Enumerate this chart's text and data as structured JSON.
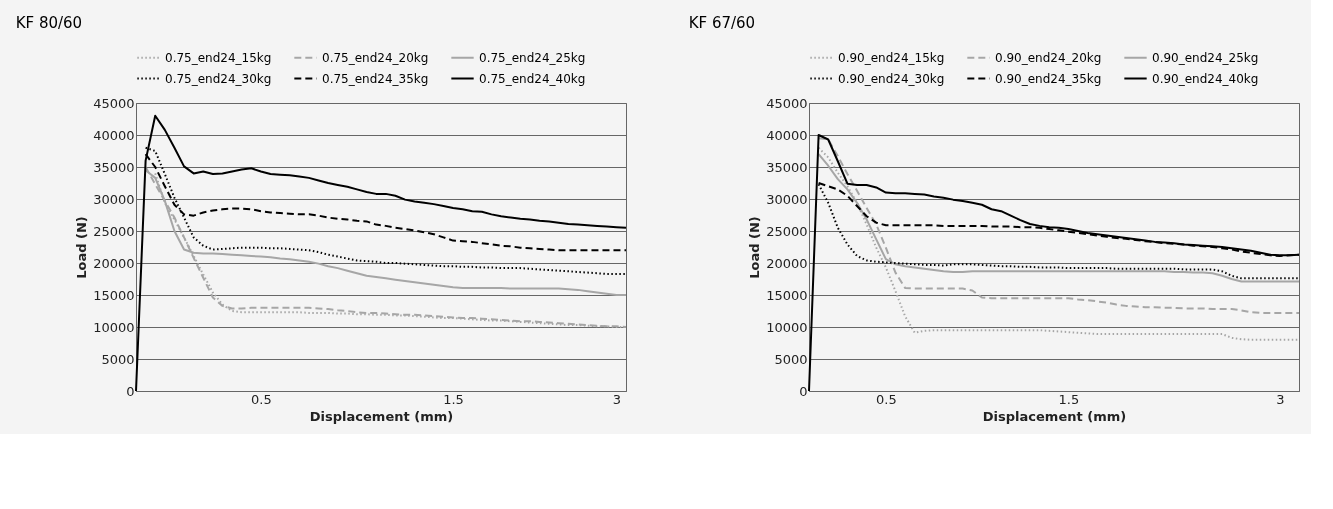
{
  "chart_data": [
    {
      "type": "line",
      "title": "KF 80/60",
      "xlabel": "Displacement (mm)",
      "ylabel": "Load (N)",
      "ylim": [
        0,
        45000
      ],
      "yticks": [
        0,
        5000,
        10000,
        15000,
        20000,
        25000,
        30000,
        35000,
        40000,
        45000
      ],
      "grid": "y",
      "legend": "top",
      "categories": [
        null,
        null,
        null,
        null,
        null,
        null,
        null,
        null,
        null,
        null,
        null,
        null,
        null,
        "0.5",
        null,
        null,
        null,
        null,
        null,
        null,
        null,
        null,
        null,
        null,
        null,
        null,
        null,
        null,
        null,
        null,
        null,
        null,
        null,
        "1.5",
        null,
        null,
        null,
        null,
        null,
        null,
        null,
        null,
        null,
        null,
        null,
        null,
        null,
        null,
        null,
        null,
        "3",
        null
      ],
      "series": [
        {
          "name": "0.75_end24_15kg",
          "color": "#a6a6a6",
          "line_style": "dotted",
          "values": [
            null,
            null,
            34000,
            29400,
            26800,
            24000,
            21100,
            18200,
            15400,
            13500,
            12500,
            12300,
            12300,
            12300,
            12300,
            12300,
            12300,
            12300,
            12200,
            12200,
            12200,
            12100,
            12100,
            12000,
            12000,
            11900,
            11900,
            11800,
            11800,
            11700,
            11600,
            11500,
            11400,
            11400,
            11300,
            11200,
            11100,
            11000,
            11000,
            10900,
            10800,
            10700,
            10600,
            10500,
            10400,
            10300,
            10300,
            10200,
            10100,
            10100,
            10000,
            10000
          ]
        },
        {
          "name": "0.75_end24_20kg",
          "color": "#a6a6a6",
          "line_style": "dashed",
          "values": [
            null,
            35000,
            32300,
            29700,
            27100,
            24000,
            20800,
            17700,
            14600,
            13300,
            12900,
            12900,
            13000,
            13000,
            13000,
            13000,
            13000,
            13000,
            13000,
            12900,
            12800,
            12600,
            12500,
            12300,
            12200,
            12200,
            12100,
            12000,
            11900,
            11900,
            11800,
            11700,
            11600,
            11500,
            11400,
            11400,
            11300,
            11200,
            11100,
            11000,
            10900,
            10900,
            10800,
            10700,
            10600,
            10500,
            10400,
            10300,
            10200,
            10100,
            10100,
            10000
          ]
        },
        {
          "name": "0.75_end24_25kg",
          "color": "#a6a6a6",
          "line_style": "solid",
          "values": [
            null,
            34500,
            33300,
            29700,
            25000,
            22100,
            21600,
            21500,
            21500,
            21400,
            21300,
            21200,
            21100,
            21000,
            20900,
            20700,
            20600,
            20400,
            20200,
            19900,
            19500,
            19200,
            18800,
            18400,
            18000,
            17800,
            17600,
            17400,
            17200,
            17000,
            16800,
            16600,
            16400,
            16200,
            16100,
            16100,
            16100,
            16100,
            16100,
            16000,
            16000,
            16000,
            16000,
            16000,
            16000,
            15900,
            15800,
            15600,
            15400,
            15200,
            15000,
            15000
          ]
        },
        {
          "name": "0.75_end24_30kg",
          "color": "#000000",
          "line_style": "dotted",
          "values": [
            null,
            38000,
            37500,
            33900,
            30200,
            27100,
            24000,
            22700,
            22100,
            22200,
            22300,
            22400,
            22400,
            22400,
            22300,
            22300,
            22200,
            22100,
            22000,
            21700,
            21300,
            21000,
            20700,
            20400,
            20300,
            20200,
            20000,
            20000,
            19900,
            19800,
            19700,
            19600,
            19500,
            19500,
            19400,
            19400,
            19300,
            19300,
            19200,
            19200,
            19200,
            19100,
            19000,
            18900,
            18800,
            18700,
            18600,
            18500,
            18400,
            18300,
            18300,
            18300
          ]
        },
        {
          "name": "0.75_end24_35kg",
          "color": "#000000",
          "line_style": "dashed",
          "values": [
            null,
            37000,
            35000,
            32000,
            29100,
            27600,
            27400,
            27900,
            28200,
            28400,
            28500,
            28500,
            28400,
            28100,
            27900,
            27800,
            27700,
            27600,
            27600,
            27400,
            27100,
            26900,
            26800,
            26600,
            26500,
            26000,
            25800,
            25500,
            25300,
            25100,
            24800,
            24500,
            24000,
            23500,
            23400,
            23300,
            23100,
            22900,
            22700,
            22600,
            22400,
            22300,
            22200,
            22100,
            22000,
            22000,
            22000,
            22000,
            22000,
            22000,
            22000,
            22000
          ]
        },
        {
          "name": "0.75_end24_40kg",
          "color": "#000000",
          "line_style": "solid",
          "values": [
            0,
            36000,
            43000,
            40800,
            38000,
            35100,
            34000,
            34300,
            33900,
            34000,
            34300,
            34600,
            34800,
            34300,
            33900,
            33800,
            33700,
            33500,
            33300,
            32900,
            32500,
            32200,
            31900,
            31500,
            31100,
            30800,
            30800,
            30500,
            29900,
            29600,
            29400,
            29200,
            28900,
            28600,
            28400,
            28100,
            28000,
            27600,
            27300,
            27100,
            26900,
            26800,
            26600,
            26500,
            26300,
            26100,
            26000,
            25900,
            25800,
            25700,
            25600,
            25500
          ]
        }
      ]
    },
    {
      "type": "line",
      "title": "KF 67/60",
      "xlabel": "Displacement (mm)",
      "ylabel": "Load (N)",
      "ylim": [
        0,
        45000
      ],
      "yticks": [
        0,
        5000,
        10000,
        15000,
        20000,
        25000,
        30000,
        35000,
        40000,
        45000
      ],
      "grid": "y",
      "legend": "top",
      "categories": [
        null,
        null,
        null,
        null,
        null,
        null,
        null,
        null,
        "0.5",
        null,
        null,
        null,
        null,
        null,
        null,
        null,
        null,
        null,
        null,
        null,
        null,
        null,
        null,
        null,
        null,
        null,
        null,
        "1.5",
        null,
        null,
        null,
        null,
        null,
        null,
        null,
        null,
        null,
        null,
        null,
        null,
        null,
        null,
        null,
        null,
        null,
        null,
        null,
        null,
        null,
        "3",
        null,
        null
      ],
      "series": [
        {
          "name": "0.90_end24_15kg",
          "color": "#a6a6a6",
          "line_style": "dotted",
          "values": [
            null,
            38000,
            36500,
            34100,
            32000,
            29400,
            26000,
            22400,
            19300,
            15600,
            11700,
            9100,
            9400,
            9500,
            9500,
            9500,
            9500,
            9500,
            9500,
            9500,
            9500,
            9500,
            9500,
            9500,
            9500,
            9400,
            9300,
            9200,
            9100,
            9000,
            8900,
            8900,
            8900,
            8900,
            8900,
            8900,
            8900,
            8900,
            8900,
            8900,
            8900,
            8900,
            8900,
            8900,
            8300,
            8100,
            8000,
            8000,
            8000,
            8000,
            8000,
            8000
          ]
        },
        {
          "name": "0.90_end24_20kg",
          "color": "#a6a6a6",
          "line_style": "dashed",
          "values": [
            null,
            39500,
            39300,
            36700,
            33900,
            31300,
            28600,
            26000,
            22400,
            18500,
            16100,
            16000,
            16000,
            16000,
            16000,
            16000,
            16000,
            15700,
            14600,
            14500,
            14500,
            14500,
            14500,
            14500,
            14500,
            14500,
            14500,
            14500,
            14300,
            14200,
            14000,
            13800,
            13500,
            13300,
            13200,
            13100,
            13100,
            13000,
            13000,
            12900,
            12900,
            12900,
            12800,
            12800,
            12800,
            12600,
            12300,
            12200,
            12200,
            12200,
            12200,
            12200
          ]
        },
        {
          "name": "0.90_end24_25kg",
          "color": "#a6a6a6",
          "line_style": "solid",
          "values": [
            null,
            37000,
            35200,
            33100,
            31500,
            29400,
            26800,
            23700,
            20600,
            19800,
            19500,
            19300,
            19100,
            18900,
            18700,
            18600,
            18600,
            18700,
            18700,
            18700,
            18700,
            18700,
            18700,
            18700,
            18700,
            18700,
            18700,
            18700,
            18700,
            18700,
            18700,
            18700,
            18700,
            18700,
            18700,
            18700,
            18700,
            18700,
            18600,
            18600,
            18500,
            18500,
            18400,
            18000,
            17500,
            17100,
            17100,
            17100,
            17100,
            17100,
            17100,
            17100
          ]
        },
        {
          "name": "0.90_end24_30kg",
          "color": "#000000",
          "line_style": "dotted",
          "values": [
            null,
            32300,
            29400,
            25500,
            22900,
            21100,
            20400,
            20200,
            20100,
            20000,
            19900,
            19800,
            19700,
            19700,
            19600,
            19800,
            19800,
            19800,
            19700,
            19600,
            19500,
            19500,
            19400,
            19400,
            19300,
            19300,
            19300,
            19200,
            19200,
            19200,
            19200,
            19200,
            19100,
            19100,
            19100,
            19100,
            19100,
            19100,
            19100,
            19000,
            19000,
            19000,
            19000,
            18700,
            18000,
            17600,
            17600,
            17600,
            17600,
            17600,
            17600,
            17600
          ]
        },
        {
          "name": "0.90_end24_35kg",
          "color": "#000000",
          "line_style": "dashed",
          "values": [
            null,
            32500,
            32000,
            31500,
            30500,
            28900,
            27300,
            26300,
            25900,
            25900,
            25900,
            25900,
            25900,
            25900,
            25800,
            25800,
            25800,
            25800,
            25800,
            25700,
            25700,
            25700,
            25600,
            25600,
            25500,
            25300,
            25100,
            24900,
            24700,
            24500,
            24300,
            24100,
            23900,
            23800,
            23600,
            23400,
            23300,
            23100,
            23000,
            22900,
            22700,
            22600,
            22500,
            22300,
            22100,
            21800,
            21600,
            21400,
            21200,
            21100,
            21200,
            21300
          ]
        },
        {
          "name": "0.90_end24_40kg",
          "color": "#000000",
          "line_style": "solid",
          "values": [
            0,
            40000,
            39300,
            35900,
            32400,
            32200,
            32200,
            31800,
            31000,
            30900,
            30900,
            30800,
            30700,
            30400,
            30200,
            29900,
            29700,
            29400,
            29100,
            28400,
            28100,
            27400,
            26700,
            26100,
            25800,
            25600,
            25500,
            25300,
            25000,
            24700,
            24500,
            24300,
            24100,
            23900,
            23700,
            23500,
            23300,
            23200,
            23100,
            22900,
            22800,
            22700,
            22600,
            22500,
            22300,
            22100,
            21900,
            21600,
            21300,
            21200,
            21200,
            21300
          ]
        }
      ]
    }
  ]
}
